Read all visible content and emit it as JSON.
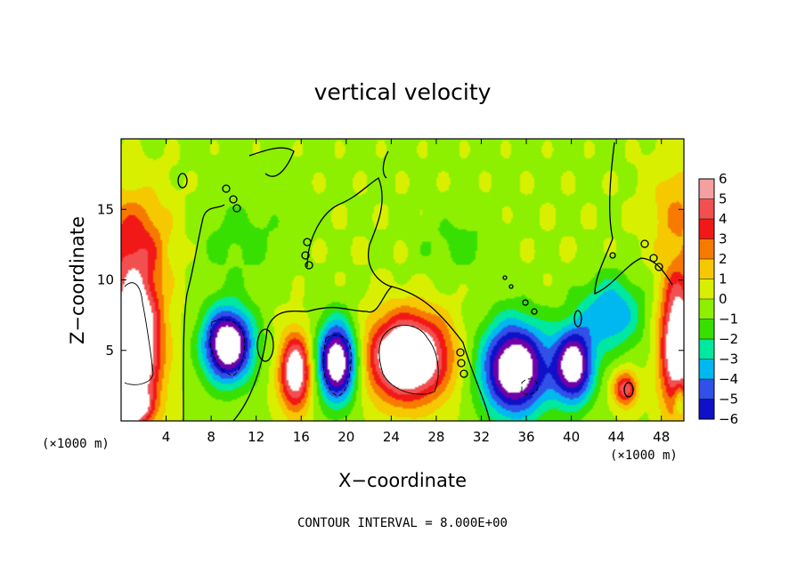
{
  "chart_data": {
    "type": "heatmap",
    "title": "vertical velocity",
    "xlabel": "X−coordinate",
    "ylabel": "Z−coordinate",
    "x_unit_left": "(×1000 m)",
    "x_unit_right": "(×1000 m)",
    "xlim": [
      0,
      50
    ],
    "ylim": [
      0,
      20
    ],
    "x_ticks": [
      4,
      8,
      12,
      16,
      20,
      24,
      28,
      32,
      36,
      40,
      44,
      48
    ],
    "x_tick_labels": [
      "4",
      "8",
      "12",
      "16",
      "20",
      "24",
      "28",
      "32",
      "36",
      "40",
      "44",
      "48"
    ],
    "y_ticks": [
      5,
      10,
      15
    ],
    "y_tick_labels": [
      "5",
      "10",
      "15"
    ],
    "colorbar": {
      "levels": [
        6,
        5,
        4,
        3,
        2,
        1,
        0,
        -1,
        -2,
        -3,
        -4,
        -5,
        -6
      ],
      "labels": [
        "6",
        "5",
        "4",
        "3",
        "2",
        "1",
        "0",
        "−1",
        "−2",
        "−3",
        "−4",
        "−5",
        "−6"
      ],
      "colors": [
        "#f4a0a0",
        "#f25050",
        "#f21818",
        "#f77a00",
        "#f5c800",
        "#d8f000",
        "#8cf000",
        "#38e000",
        "#00e8a0",
        "#00b8f0",
        "#3050e8",
        "#1010c8",
        "#7000a8"
      ],
      "saturated_high_color": "#ffffff",
      "saturated_low_color": "#ffffff"
    },
    "features": [
      {
        "x": 1.2,
        "z": 5.5,
        "rx": 2.6,
        "rz": 5.8,
        "value": 9
      },
      {
        "x": 9.5,
        "z": 5.4,
        "rx": 2.5,
        "rz": 3.0,
        "value": -9
      },
      {
        "x": 15.5,
        "z": 3.5,
        "rx": 1.6,
        "rz": 3.0,
        "value": 7
      },
      {
        "x": 19.2,
        "z": 4.2,
        "rx": 2.0,
        "rz": 3.2,
        "value": -9
      },
      {
        "x": 25.5,
        "z": 4.5,
        "rx": 4.0,
        "rz": 3.4,
        "value": 9
      },
      {
        "x": 35.0,
        "z": 3.7,
        "rx": 3.4,
        "rz": 3.8,
        "value": -9
      },
      {
        "x": 40.2,
        "z": 3.9,
        "rx": 2.0,
        "rz": 3.0,
        "value": -8
      },
      {
        "x": 43.5,
        "z": 7.6,
        "rx": 3.2,
        "rz": 3.0,
        "value": -4
      },
      {
        "x": 44.8,
        "z": 2.3,
        "rx": 1.2,
        "rz": 1.4,
        "value": 5
      },
      {
        "x": 49.5,
        "z": 5.5,
        "rx": 1.8,
        "rz": 5.5,
        "value": 8
      },
      {
        "x": 1.0,
        "z": 13.0,
        "rx": 4.0,
        "rz": 4.0,
        "value": 3
      },
      {
        "x": 49.5,
        "z": 15.0,
        "rx": 3.0,
        "rz": 4.0,
        "value": 2
      },
      {
        "x": 10.5,
        "z": 13.0,
        "rx": 5.0,
        "rz": 3.5,
        "value": -1.3
      },
      {
        "x": 30.0,
        "z": 12.5,
        "rx": 4.0,
        "rz": 2.5,
        "value": -1.3
      },
      {
        "x": 0.5,
        "z": 1.0,
        "rx": 2.0,
        "rz": 1.2,
        "value": 7
      },
      {
        "x": 49.6,
        "z": 1.5,
        "rx": 0.6,
        "rz": 1.5,
        "value": -3
      }
    ],
    "annotation": "CONTOUR INTERVAL = 8.000E+00"
  }
}
